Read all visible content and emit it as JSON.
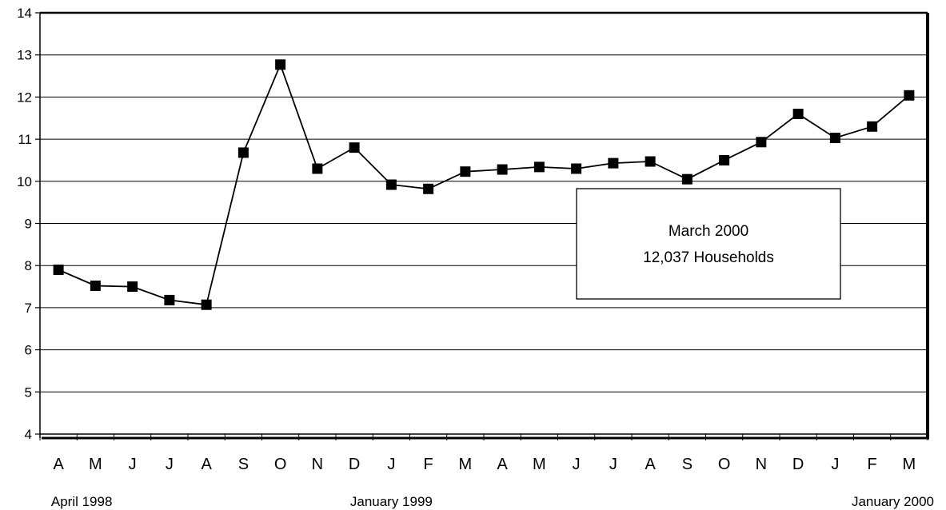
{
  "chart_data": {
    "type": "line",
    "title": "",
    "xlabel": "",
    "ylabel": "",
    "categories": [
      "A",
      "M",
      "J",
      "J",
      "A",
      "S",
      "O",
      "N",
      "D",
      "J",
      "F",
      "M",
      "A",
      "M",
      "J",
      "J",
      "A",
      "S",
      "O",
      "N",
      "D",
      "J",
      "F",
      "M"
    ],
    "series": [
      {
        "values": [
          7.9,
          7.52,
          7.5,
          7.18,
          7.07,
          10.68,
          12.77,
          10.3,
          10.8,
          9.92,
          9.82,
          10.23,
          10.28,
          10.34,
          10.3,
          10.43,
          10.47,
          10.05,
          10.5,
          10.93,
          11.6,
          11.03,
          11.3,
          12.04
        ]
      }
    ],
    "ylim": [
      4,
      14
    ],
    "yticks": [
      4,
      5,
      6,
      7,
      8,
      9,
      10,
      11,
      12,
      13,
      14
    ],
    "grid": true,
    "group_labels": [
      {
        "text": "April 1998",
        "index": 0
      },
      {
        "text": "January 1999",
        "index": 9
      },
      {
        "text": "January  2000",
        "index": 21
      }
    ],
    "annotation": {
      "line1": "March 2000",
      "line2": "12,037  Households"
    },
    "colors": {
      "line": "#000000",
      "marker": "#000000",
      "grid": "#000000",
      "frame": "#000000"
    }
  }
}
